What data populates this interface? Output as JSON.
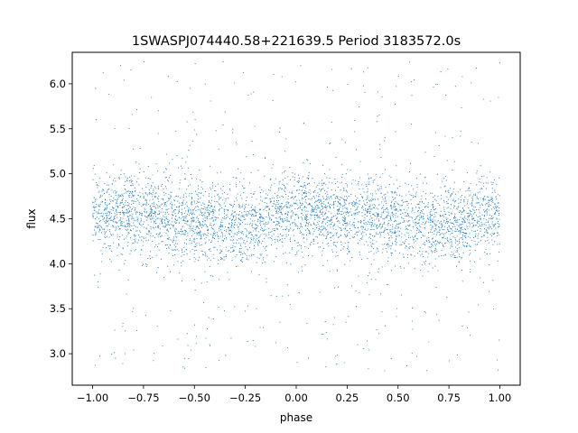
{
  "chart_data": {
    "type": "scatter",
    "title": "1SWASPJ074440.58+221639.5 Period 3183572.0s",
    "xlabel": "phase",
    "ylabel": "flux",
    "xlim": [
      -1.1,
      1.1
    ],
    "ylim": [
      2.65,
      6.35
    ],
    "xticks": [
      -1.0,
      -0.75,
      -0.5,
      -0.25,
      0.0,
      0.25,
      0.5,
      0.75,
      1.0
    ],
    "xtick_labels": [
      "−1.00",
      "−0.75",
      "−0.50",
      "−0.25",
      "0.00",
      "0.25",
      "0.50",
      "0.75",
      "1.00"
    ],
    "yticks": [
      3.0,
      3.5,
      4.0,
      4.5,
      5.0,
      5.5,
      6.0
    ],
    "ytick_labels": [
      "3.0",
      "3.5",
      "4.0",
      "4.5",
      "5.0",
      "5.5",
      "6.0"
    ],
    "grid": false,
    "legend": "none",
    "marker_color": "#1f77b4",
    "series": [
      {
        "x_range": [
          -1.0,
          1.0
        ],
        "y_core_range": [
          4.0,
          5.0
        ],
        "y_full_range": [
          2.8,
          6.25
        ],
        "median_flux": 4.5,
        "profile": [
          {
            "phase": -1.0,
            "flux": 4.58
          },
          {
            "phase": -0.75,
            "flux": 4.55
          },
          {
            "phase": -0.5,
            "flux": 4.46
          },
          {
            "phase": -0.35,
            "flux": 4.43
          },
          {
            "phase": -0.2,
            "flux": 4.45
          },
          {
            "phase": 0.0,
            "flux": 4.58
          },
          {
            "phase": 0.25,
            "flux": 4.55
          },
          {
            "phase": 0.5,
            "flux": 4.46
          },
          {
            "phase": 0.65,
            "flux": 4.43
          },
          {
            "phase": 0.8,
            "flux": 4.45
          },
          {
            "phase": 1.0,
            "flux": 4.58
          }
        ]
      }
    ]
  }
}
